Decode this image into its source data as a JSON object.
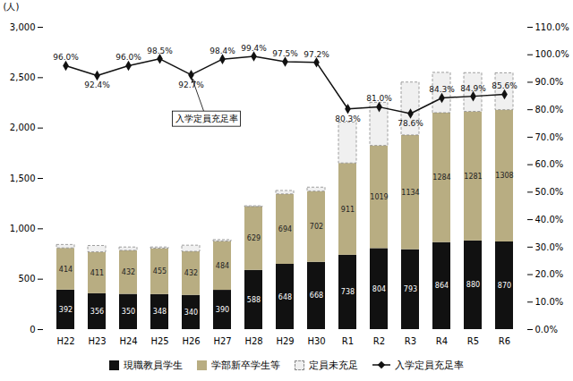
{
  "chart_data": {
    "type": "bar",
    "stacked": true,
    "categories": [
      "H22",
      "H23",
      "H24",
      "H25",
      "H26",
      "H27",
      "H28",
      "H29",
      "H30",
      "R1",
      "R2",
      "R3",
      "R4",
      "R5",
      "R6"
    ],
    "series": [
      {
        "name": "現職教員学生",
        "type": "bar",
        "color": "#111111",
        "data_labels": true,
        "values": [
          392,
          356,
          350,
          348,
          340,
          390,
          588,
          648,
          668,
          738,
          804,
          793,
          864,
          880,
          870
        ]
      },
      {
        "name": "学部新卒学生等",
        "type": "bar",
        "color": "#b8ad82",
        "data_labels": true,
        "values": [
          414,
          411,
          432,
          455,
          432,
          484,
          629,
          694,
          702,
          911,
          1019,
          1134,
          1284,
          1281,
          1308
        ]
      },
      {
        "name": "定員未充足",
        "type": "bar",
        "color": "#f0f0f0",
        "line_style": "dashed",
        "values": [
          34,
          63,
          33,
          12,
          61,
          14,
          7,
          34,
          39,
          405,
          428,
          525,
          400,
          384,
          366
        ]
      },
      {
        "name": "入学定員充足率",
        "type": "line",
        "axis": "y2",
        "color": "#111111",
        "marker": "diamond",
        "data_labels": true,
        "values": [
          96.0,
          92.4,
          96.0,
          98.5,
          92.7,
          98.4,
          99.4,
          97.5,
          97.2,
          80.3,
          81.0,
          78.6,
          84.3,
          84.9,
          85.6
        ],
        "value_labels": [
          "96.0%",
          "92.4%",
          "96.0%",
          "98.5%",
          "92.7%",
          "98.4%",
          "99.4%",
          "97.5%",
          "97.2%",
          "80.3%",
          "81.0%",
          "78.6%",
          "84.3%",
          "84.9%",
          "85.6%"
        ]
      }
    ],
    "ylabel": "(人)",
    "ylim": [
      0,
      3000
    ],
    "yticks": [
      0,
      500,
      {
        "value": 1000,
        "label": "1,000"
      },
      {
        "value": 1500,
        "label": "1,500"
      },
      {
        "value": 2000,
        "label": "2,000"
      },
      {
        "value": 2500,
        "label": "2,500"
      },
      {
        "value": 3000,
        "label": "3,000"
      }
    ],
    "y2lim": [
      0,
      110
    ],
    "y2ticks": [
      {
        "value": 0,
        "label": "0.0%"
      },
      {
        "value": 10,
        "label": "10.0%"
      },
      {
        "value": 20,
        "label": "20.0%"
      },
      {
        "value": 30,
        "label": "30.0%"
      },
      {
        "value": 40,
        "label": "40.0%"
      },
      {
        "value": 50,
        "label": "50.0%"
      },
      {
        "value": 60,
        "label": "60.0%"
      },
      {
        "value": 70,
        "label": "70.0%"
      },
      {
        "value": 80,
        "label": "80.0%"
      },
      {
        "value": 90,
        "label": "90.0%"
      },
      {
        "value": 100,
        "label": "100.0%"
      },
      {
        "value": 110,
        "label": "110.0%"
      }
    ],
    "annotations": [
      {
        "text": "入学定員充足率",
        "category": "H26"
      }
    ],
    "grid": false,
    "legend": "bottom"
  }
}
